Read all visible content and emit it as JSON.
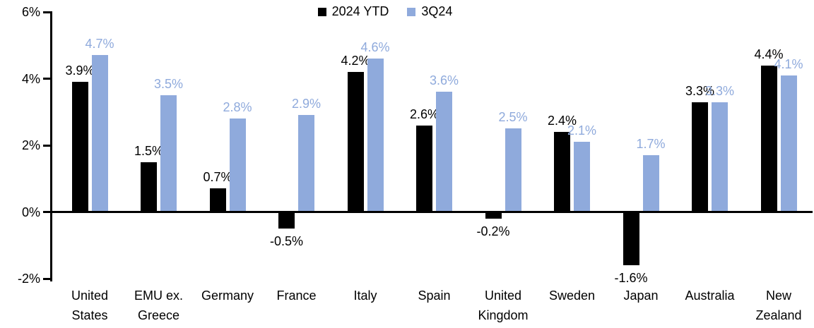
{
  "chart_data": {
    "type": "bar",
    "title": "",
    "xlabel": "",
    "ylabel": "",
    "grid": false,
    "legend_position": "top-center",
    "ylim": [
      -2,
      6
    ],
    "yticks": [
      6,
      4,
      2,
      0,
      -2
    ],
    "ytick_labels": [
      "6%",
      "4%",
      "2%",
      "0%",
      "-2%"
    ],
    "value_label_suffix": "%",
    "categories": [
      {
        "label_lines": [
          "United",
          "States"
        ]
      },
      {
        "label_lines": [
          "EMU ex.",
          "Greece"
        ]
      },
      {
        "label_lines": [
          "Germany"
        ]
      },
      {
        "label_lines": [
          "France"
        ]
      },
      {
        "label_lines": [
          "Italy"
        ]
      },
      {
        "label_lines": [
          "Spain"
        ]
      },
      {
        "label_lines": [
          "United",
          "Kingdom"
        ]
      },
      {
        "label_lines": [
          "Sweden"
        ]
      },
      {
        "label_lines": [
          "Japan"
        ]
      },
      {
        "label_lines": [
          "Australia"
        ]
      },
      {
        "label_lines": [
          "New",
          "Zealand"
        ]
      }
    ],
    "series": [
      {
        "name": "2024 YTD",
        "color": "#000000",
        "values": [
          3.9,
          1.5,
          0.7,
          -0.5,
          4.2,
          2.6,
          -0.2,
          2.4,
          -1.6,
          3.3,
          4.4
        ],
        "value_labels": [
          "3.9%",
          "1.5%",
          "0.7%",
          "-0.5%",
          "4.2%",
          "2.6%",
          "-0.2%",
          "2.4%",
          "-1.6%",
          "3.3%",
          "4.4%"
        ]
      },
      {
        "name": "3Q24",
        "color": "#8FAADC",
        "values": [
          4.7,
          3.5,
          2.8,
          2.9,
          4.6,
          3.6,
          2.5,
          2.1,
          1.7,
          3.3,
          4.1
        ],
        "value_labels": [
          "4.7%",
          "3.5%",
          "2.8%",
          "2.9%",
          "4.6%",
          "3.6%",
          "2.5%",
          "2.1%",
          "1.7%",
          "3.3%",
          "4.1%"
        ]
      }
    ]
  }
}
